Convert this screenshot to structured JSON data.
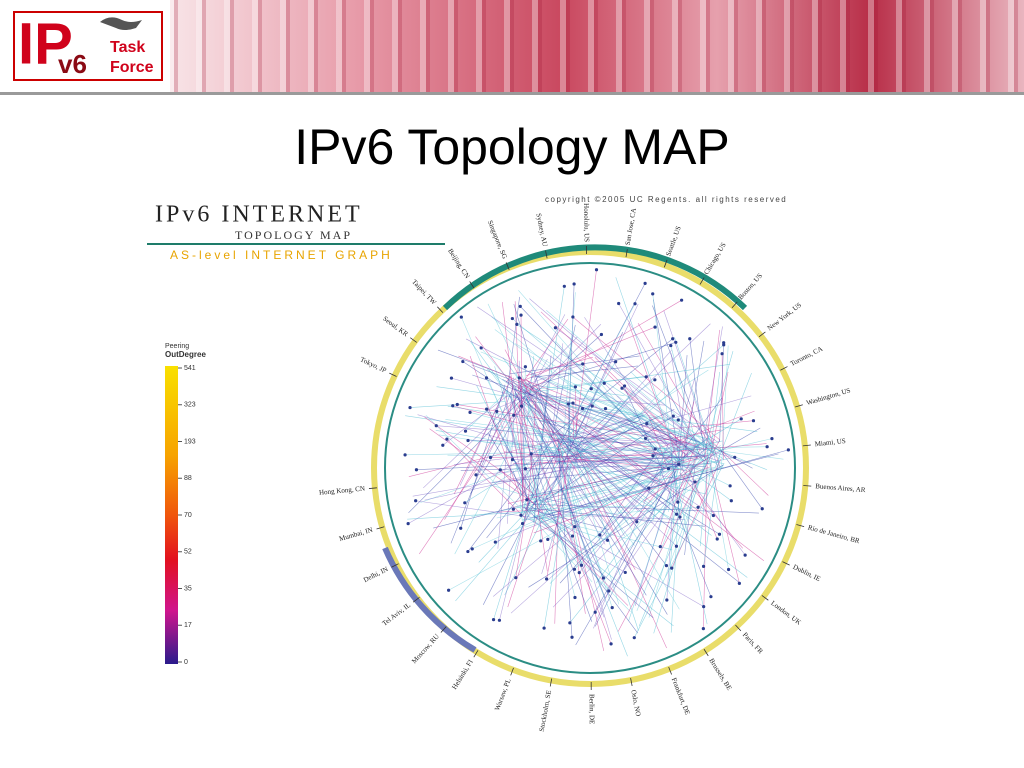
{
  "header": {
    "logo_ip": "IP",
    "logo_v6": "v6",
    "logo_task": "Task",
    "logo_force": "Force"
  },
  "title": "IPv6 Topology MAP",
  "figure": {
    "heading": "IPv6 INTERNET",
    "subheading": "TOPOLOGY MAP",
    "tagline": "AS-level INTERNET GRAPH",
    "copyright": "copyright ©2005 UC Regents. all rights reserved",
    "legend": {
      "title1": "Peering",
      "title2": "OutDegree",
      "ticks": [
        "541",
        "323",
        "193",
        "88",
        "70",
        "52",
        "35",
        "17",
        "0"
      ]
    },
    "cities": [
      "Tokyo, JP",
      "Seoul, KR",
      "Taipei, TW",
      "Beijing, CN",
      "Singapore, SG",
      "Sydney, AU",
      "Honolulu, US",
      "San Jose, CA",
      "Seattle, US",
      "Chicago, US",
      "Boston, US",
      "New York, US",
      "Toronto, CA",
      "Washington, US",
      "Miami, US",
      "Buenos Aires, AR",
      "Rio de Janeiro, BR",
      "Dublin, IE",
      "London, UK",
      "Paris, FR",
      "Brussels, BE",
      "Frankfurt, DE",
      "Oslo, NO",
      "Berlin, DE",
      "Stockholm, SE",
      "Warsaw, PL",
      "Helsinki, FI",
      "Moscow, RU",
      "Tel Aviv, IL",
      "Delhi, IN",
      "Mumbai, IN",
      "Hong Kong, CN"
    ]
  }
}
